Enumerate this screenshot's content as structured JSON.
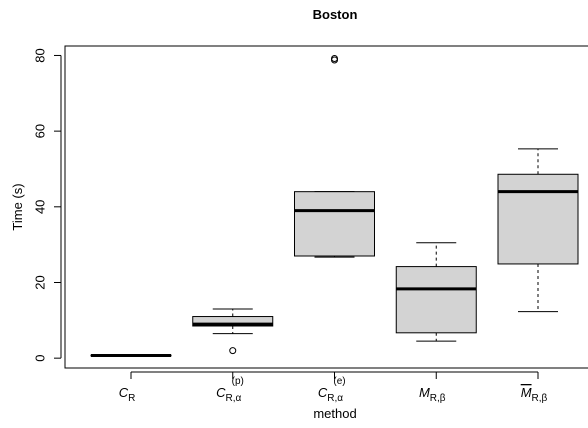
{
  "chart_data": {
    "type": "boxplot",
    "title": "Boston",
    "xlabel": "method",
    "ylabel": "Time (s)",
    "yticks": [
      0,
      20,
      40,
      60,
      80
    ],
    "ylim": [
      -2.6,
      82.5
    ],
    "grid": false,
    "legend": "none",
    "colors": {
      "box_fill": "#d3d3d3",
      "stroke": "#000000"
    },
    "categories": [
      {
        "main": "C",
        "sub": "R",
        "sup": "",
        "overline": false
      },
      {
        "main": "C",
        "sub": "R,α",
        "sup": "(p)",
        "overline": false
      },
      {
        "main": "C",
        "sub": "R,α",
        "sup": "(e)",
        "overline": false
      },
      {
        "main": "M",
        "sub": "R,β",
        "sup": "",
        "overline": false
      },
      {
        "main": "M",
        "sub": "R,β",
        "sup": "",
        "overline": true
      }
    ],
    "boxes": [
      {
        "whisker_low": 0.5,
        "q1": 0.6,
        "median": 0.7,
        "q3": 0.8,
        "whisker_high": 0.9,
        "outliers": []
      },
      {
        "whisker_low": 6.5,
        "q1": 8.5,
        "median": 9.0,
        "q3": 11.0,
        "whisker_high": 13.0,
        "outliers": [
          2.0
        ]
      },
      {
        "whisker_low": 26.7,
        "q1": 27.0,
        "median": 39.0,
        "q3": 44.0,
        "whisker_high": 44.0,
        "outliers": [
          78.8,
          79.2
        ]
      },
      {
        "whisker_low": 4.5,
        "q1": 6.7,
        "median": 18.3,
        "q3": 24.2,
        "whisker_high": 30.5,
        "outliers": []
      },
      {
        "whisker_low": 12.3,
        "q1": 24.9,
        "median": 44.0,
        "q3": 48.6,
        "whisker_high": 55.3,
        "outliers": []
      }
    ]
  }
}
